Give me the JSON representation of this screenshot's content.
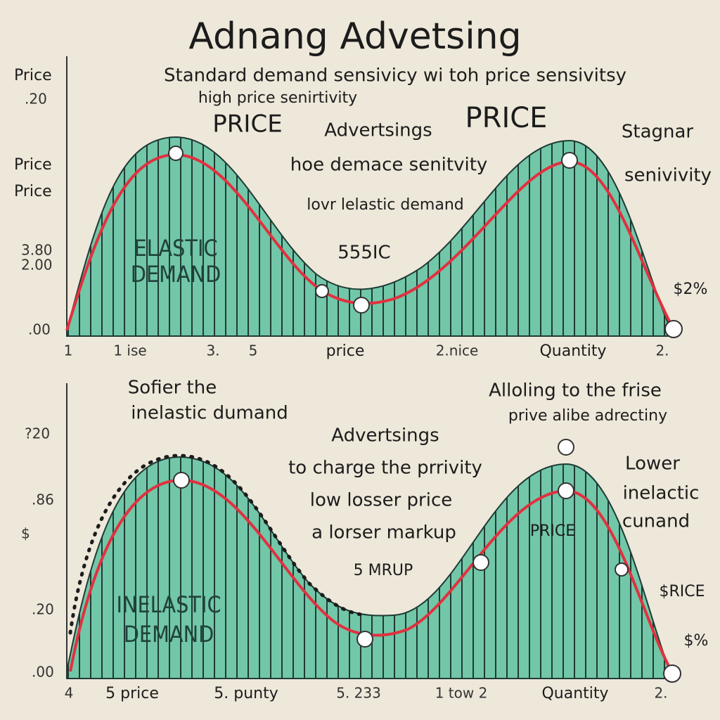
{
  "header": {
    "title": "Adnang Advetsing"
  },
  "top_panel": {
    "subtitle": [
      "Standard demand sensivicy wi toh price sensivitsy",
      "high price senirtivity"
    ],
    "y_labels": [
      "Price",
      ".20",
      "Price",
      "Price",
      "3.80",
      "2.00",
      ".00"
    ],
    "annotations": [
      "PRICE",
      "Advertsings",
      "PRICE",
      "Stagnar",
      "senivivity",
      "hoe demace senitvity",
      "lovr lelastic demand",
      "555IC",
      "$2%"
    ],
    "region_label": [
      "ELASTIC",
      "DEMAND"
    ],
    "x_labels": [
      "1",
      "1 ise",
      "3.",
      "5",
      "price",
      "2.nice",
      "Quantity",
      "2."
    ]
  },
  "bottom_panel": {
    "annotations": [
      "Sofier the",
      "inelastic dumand",
      "Alloling to the frise",
      "prive alibe adrectiny",
      "Advertsings",
      "to charge the prrivity",
      "low losser price",
      "a lorser markup",
      "5 MRUP",
      "Lower",
      "inelactic",
      "cunand",
      "PRICE",
      "$RICE",
      "$%"
    ],
    "y_labels": [
      "?20",
      ".86",
      "$",
      ".20",
      ".00"
    ],
    "region_label": [
      "INELASTIC",
      "DEMAND"
    ],
    "x_labels": [
      "4",
      "5 price",
      "5. punty",
      "5. 233",
      "1 tow 2",
      "Quantity",
      "2."
    ]
  }
}
